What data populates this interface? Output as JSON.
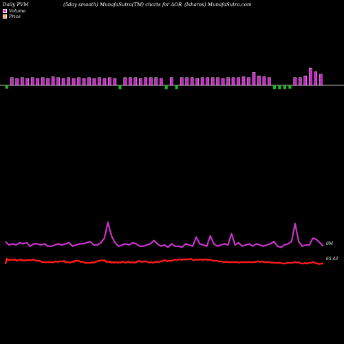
{
  "header": {
    "left": "Daily PVM",
    "mid": "(5day smooth) MunafaSutra(TM) charts for AOR",
    "right": "(Ishares) MunafaSutra.com"
  },
  "legend": [
    {
      "name": "Volume",
      "color": "#cc33cc"
    },
    {
      "name": "Price",
      "color": "#ff9966"
    }
  ],
  "chart_data": {
    "type": "bar",
    "title": "",
    "volume_up_color": "#cc22cc",
    "volume_down_color": "#22bb22",
    "volume_line_color": "#cc33cc",
    "price_line_color": "#ff1a1a",
    "volume_bars": [
      {
        "v": 7,
        "up": false
      },
      {
        "v": 9,
        "up": true
      },
      {
        "v": 8,
        "up": true
      },
      {
        "v": 9,
        "up": true
      },
      {
        "v": 8,
        "up": true
      },
      {
        "v": 9,
        "up": true
      },
      {
        "v": 8,
        "up": true
      },
      {
        "v": 9,
        "up": true
      },
      {
        "v": 8,
        "up": true
      },
      {
        "v": 10,
        "up": true
      },
      {
        "v": 9,
        "up": true
      },
      {
        "v": 8,
        "up": true
      },
      {
        "v": 9,
        "up": true
      },
      {
        "v": 8,
        "up": true
      },
      {
        "v": 9,
        "up": true
      },
      {
        "v": 8,
        "up": true
      },
      {
        "v": 9,
        "up": true
      },
      {
        "v": 8,
        "up": true
      },
      {
        "v": 9,
        "up": true
      },
      {
        "v": 8,
        "up": true
      },
      {
        "v": 9,
        "up": true
      },
      {
        "v": 8,
        "up": true
      },
      {
        "v": 8,
        "up": false
      },
      {
        "v": 9,
        "up": true
      },
      {
        "v": 9,
        "up": true
      },
      {
        "v": 9,
        "up": true
      },
      {
        "v": 8,
        "up": true
      },
      {
        "v": 9,
        "up": true
      },
      {
        "v": 9,
        "up": true
      },
      {
        "v": 9,
        "up": true
      },
      {
        "v": 8,
        "up": true
      },
      {
        "v": 8,
        "up": false
      },
      {
        "v": 9,
        "up": true
      },
      {
        "v": 8,
        "up": false
      },
      {
        "v": 9,
        "up": true
      },
      {
        "v": 9,
        "up": true
      },
      {
        "v": 9,
        "up": true
      },
      {
        "v": 8,
        "up": true
      },
      {
        "v": 9,
        "up": true
      },
      {
        "v": 9,
        "up": true
      },
      {
        "v": 9,
        "up": true
      },
      {
        "v": 9,
        "up": true
      },
      {
        "v": 8,
        "up": true
      },
      {
        "v": 9,
        "up": true
      },
      {
        "v": 9,
        "up": true
      },
      {
        "v": 9,
        "up": true
      },
      {
        "v": 10,
        "up": true
      },
      {
        "v": 9,
        "up": true
      },
      {
        "v": 15,
        "up": true
      },
      {
        "v": 11,
        "up": true
      },
      {
        "v": 10,
        "up": true
      },
      {
        "v": 9,
        "up": true
      },
      {
        "v": 8,
        "up": false
      },
      {
        "v": 8,
        "up": false
      },
      {
        "v": 8,
        "up": false
      },
      {
        "v": 7,
        "up": false
      },
      {
        "v": 9,
        "up": true
      },
      {
        "v": 9,
        "up": true
      },
      {
        "v": 11,
        "up": true
      },
      {
        "v": 20,
        "up": true
      },
      {
        "v": 16,
        "up": true
      },
      {
        "v": 13,
        "up": true
      }
    ],
    "volume_line": [
      9,
      6,
      7,
      6,
      8,
      7,
      8,
      5,
      7,
      7,
      6,
      7,
      5,
      5,
      6,
      7,
      6,
      7,
      8,
      5,
      6,
      7,
      7,
      8,
      9,
      6,
      6,
      8,
      12,
      26,
      14,
      8,
      5,
      6,
      7,
      6,
      8,
      7,
      5,
      5,
      6,
      7,
      10,
      7,
      5,
      6,
      4,
      7,
      5,
      5,
      4,
      7,
      6,
      5,
      13,
      7,
      6,
      5,
      14,
      7,
      5,
      6,
      7,
      6,
      16,
      6,
      8,
      5,
      6,
      7,
      5,
      7,
      6,
      5,
      6,
      7,
      9,
      5,
      4,
      6,
      7,
      9,
      25,
      9,
      5,
      6,
      6,
      12,
      11,
      8,
      5
    ],
    "price_line": [
      14,
      22,
      20,
      20,
      21,
      20,
      21,
      20,
      21,
      19,
      20,
      20,
      20,
      21,
      19,
      20,
      19,
      20,
      20,
      20,
      20,
      20,
      20,
      21,
      20,
      19,
      19,
      19,
      19,
      18,
      17,
      17,
      17,
      17,
      17,
      17,
      17,
      17,
      17,
      17,
      17,
      18,
      18,
      17,
      18,
      18,
      18,
      18,
      19,
      17,
      17,
      17,
      17,
      16,
      17,
      18,
      17,
      19,
      19,
      19,
      19,
      18,
      17,
      18,
      17,
      16,
      16,
      16,
      16,
      16,
      16,
      17,
      16,
      17,
      17,
      18,
      19,
      19,
      19,
      20,
      19,
      20,
      19,
      17,
      18,
      17,
      18,
      16,
      17,
      16,
      17,
      17,
      16,
      17,
      16,
      17,
      18,
      17,
      17,
      16,
      17,
      18,
      16,
      17,
      17,
      16,
      17,
      16,
      18,
      18,
      19,
      18,
      17,
      18,
      18,
      18,
      18,
      17,
      16,
      17,
      17,
      16,
      17,
      17,
      18,
      17,
      17,
      18,
      18,
      19,
      19,
      20,
      19,
      18,
      19,
      19,
      19,
      19,
      20,
      21,
      20,
      20,
      21,
      21,
      21,
      20,
      21,
      21,
      21,
      21,
      21,
      21,
      22,
      21,
      20,
      20,
      20,
      21,
      20,
      21,
      21,
      20,
      21,
      20,
      21,
      21,
      20,
      20,
      21,
      20,
      19,
      19,
      19,
      19,
      19,
      18,
      18,
      18,
      18,
      17,
      17,
      18,
      17,
      17,
      17,
      17,
      17,
      17,
      17,
      17,
      17,
      17,
      16,
      17,
      17,
      17,
      17,
      17,
      17,
      17,
      17,
      17,
      17,
      17,
      17,
      17,
      18,
      18,
      18,
      17,
      18,
      18,
      17,
      17,
      17,
      17,
      17,
      17,
      16,
      17,
      16,
      16,
      16,
      16,
      16,
      16,
      16,
      15,
      15,
      15,
      15,
      16,
      16,
      16,
      16,
      16,
      16,
      17,
      17,
      16,
      17,
      16,
      16,
      15,
      15,
      15,
      16,
      15,
      15,
      16,
      16,
      16,
      17,
      17,
      16,
      15,
      15,
      15,
      14,
      15,
      15,
      15
    ],
    "right_labels": {
      "volume": "0M",
      "price": "65.43"
    }
  }
}
